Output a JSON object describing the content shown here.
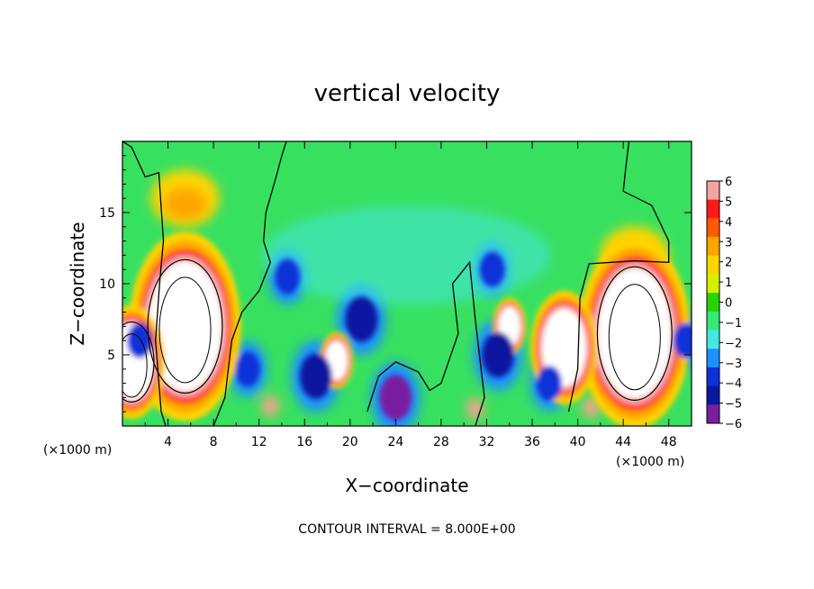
{
  "chart_data": {
    "type": "heatmap",
    "title": "vertical velocity",
    "xlabel": "X−coordinate",
    "ylabel": "Z−coordinate",
    "x_unit": "(×1000 m)",
    "y_unit": "(×1000 m)",
    "xlim": [
      0,
      50
    ],
    "ylim": [
      0,
      20
    ],
    "x_ticks": [
      "4",
      "8",
      "12",
      "16",
      "20",
      "24",
      "28",
      "32",
      "36",
      "40",
      "44",
      "48"
    ],
    "x_tick_values": [
      4,
      8,
      12,
      16,
      20,
      24,
      28,
      32,
      36,
      40,
      44,
      48
    ],
    "y_ticks": [
      "5",
      "10",
      "15"
    ],
    "y_tick_values": [
      5,
      10,
      15
    ],
    "colorbar": {
      "ticks": [
        "6",
        "5",
        "4",
        "3",
        "2",
        "1",
        "0",
        "−1",
        "−2",
        "−3",
        "−4",
        "−5",
        "−6"
      ],
      "values": [
        6,
        5,
        4,
        3,
        2,
        1,
        0,
        -1,
        -2,
        -3,
        -4,
        -5,
        -6
      ],
      "colors": [
        "#f4a3a3",
        "#ff1a1a",
        "#ff5a00",
        "#ffa500",
        "#ffd400",
        "#d4f000",
        "#28d400",
        "#38e878",
        "#44e8e0",
        "#1e90ff",
        "#1030d8",
        "#0818a0",
        "#7a1fa0"
      ]
    },
    "annotation": "CONTOUR INTERVAL = 8.000E+00",
    "features": [
      {
        "x": 5.5,
        "z": 7.0,
        "w": 90,
        "kind": "updraft"
      },
      {
        "x": 45.0,
        "z": 6.5,
        "w": 90,
        "kind": "updraft"
      },
      {
        "x": 0.8,
        "z": 4.5,
        "w": 60,
        "kind": "updraft"
      },
      {
        "x": 38.8,
        "z": 5.5,
        "w": 40,
        "kind": "updraft"
      },
      {
        "x": 34.0,
        "z": 7.0,
        "w": 20,
        "kind": "updraft"
      },
      {
        "x": 18.8,
        "z": 4.6,
        "w": 12,
        "kind": "updraft"
      },
      {
        "x": 13.0,
        "z": 1.4,
        "w": 3.5,
        "kind": "updraft"
      },
      {
        "x": 41.2,
        "z": 1.3,
        "w": 3.5,
        "kind": "updraft"
      },
      {
        "x": 31.0,
        "z": 1.2,
        "w": 2,
        "kind": "updraft"
      },
      {
        "x": 5.5,
        "z": 16.0,
        "w": 4,
        "kind": "upper-outflow"
      },
      {
        "x": 45.0,
        "z": 12.0,
        "w": 4,
        "kind": "upper-outflow"
      },
      {
        "x": 24.0,
        "z": 2.0,
        "w": -6,
        "kind": "downdraft"
      },
      {
        "x": 21.0,
        "z": 7.5,
        "w": -5,
        "kind": "downdraft"
      },
      {
        "x": 17.0,
        "z": 3.5,
        "w": -5,
        "kind": "downdraft"
      },
      {
        "x": 33.0,
        "z": 5.0,
        "w": -5,
        "kind": "downdraft"
      },
      {
        "x": 32.5,
        "z": 11.0,
        "w": -4,
        "kind": "downdraft"
      },
      {
        "x": 14.5,
        "z": 10.5,
        "w": -4,
        "kind": "downdraft"
      },
      {
        "x": 11.0,
        "z": 4.0,
        "w": -4,
        "kind": "downdraft"
      },
      {
        "x": 1.5,
        "z": 6.0,
        "w": -4,
        "kind": "downdraft"
      },
      {
        "x": 49.5,
        "z": 6.0,
        "w": -4,
        "kind": "downdraft"
      },
      {
        "x": 37.5,
        "z": 3.0,
        "w": -4,
        "kind": "downdraft"
      },
      {
        "x": 25.0,
        "z": 12.0,
        "w": -2,
        "kind": "weak-downdraft"
      }
    ]
  }
}
